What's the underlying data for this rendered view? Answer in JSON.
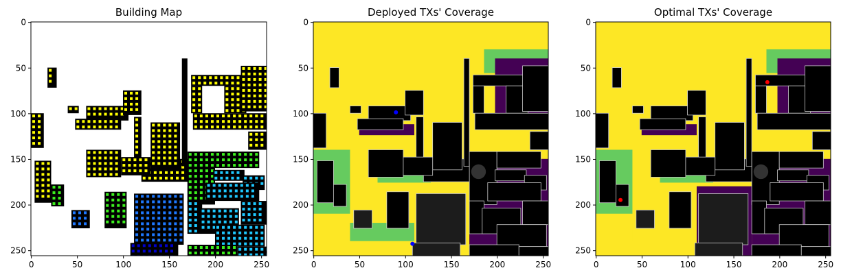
{
  "colors": {
    "building": "#000000",
    "building_gray": "#1c1c1c",
    "coverage_high": "#fde725",
    "coverage_mid": "#5ec962",
    "coverage_midlow": "#21918c",
    "coverage_low": "#440154",
    "tx_deployed": "#0000ff",
    "tx_optimal": "#ff0000",
    "dot_yellow": "#ffff00",
    "dot_green": "#3cf01e",
    "dot_blue": "#1e78ff",
    "dot_cyan": "#1ec8ff",
    "dot_navy": "#0000cc"
  },
  "chart_data": [
    {
      "type": "heatmap",
      "title": "Building Map",
      "xlabel": "",
      "ylabel": "",
      "xlim": [
        0,
        256
      ],
      "ylim": [
        256,
        0
      ],
      "x_ticks": [
        0,
        50,
        100,
        150,
        200,
        250
      ],
      "y_ticks": [
        0,
        50,
        100,
        150,
        200,
        250
      ]
    },
    {
      "type": "heatmap",
      "title": "Deployed TXs' Coverage",
      "xlabel": "",
      "ylabel": "",
      "xlim": [
        0,
        256
      ],
      "ylim": [
        256,
        0
      ],
      "x_ticks": [
        0,
        50,
        100,
        150,
        200,
        250
      ],
      "y_ticks": [
        0,
        50,
        100,
        150,
        200,
        250
      ],
      "tx_points": [
        {
          "x": 90,
          "y": 99
        },
        {
          "x": 108,
          "y": 243
        }
      ]
    },
    {
      "type": "heatmap",
      "title": "Optimal TXs' Coverage",
      "xlabel": "",
      "ylabel": "",
      "xlim": [
        0,
        256
      ],
      "ylim": [
        256,
        0
      ],
      "x_ticks": [
        0,
        50,
        100,
        150,
        200,
        250
      ],
      "y_ticks": [
        0,
        50,
        100,
        150,
        200,
        250
      ],
      "tx_points": [
        {
          "x": 187,
          "y": 66
        },
        {
          "x": 27,
          "y": 195
        }
      ]
    }
  ]
}
